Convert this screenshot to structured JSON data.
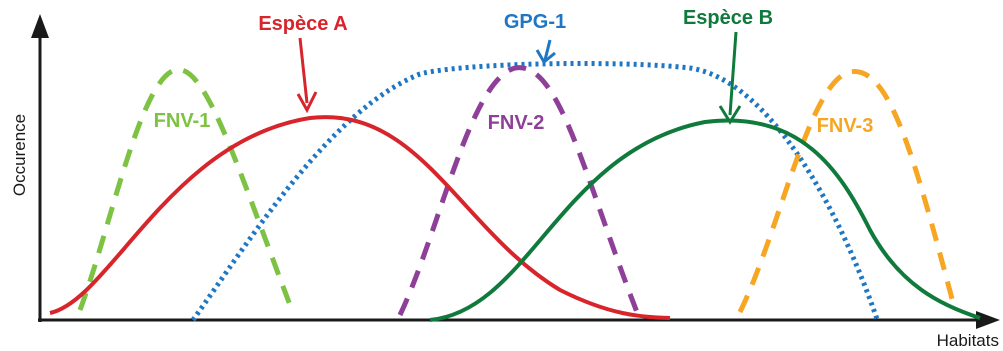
{
  "axes": {
    "y_label": "Occurence",
    "x_label": "Habitats"
  },
  "curves": {
    "espece_a": {
      "label": "Espèce A",
      "color": "#d7252b",
      "style": "solid"
    },
    "espece_b": {
      "label": "Espèce B",
      "color": "#0f7a3c",
      "style": "solid"
    },
    "gpg_1": {
      "label": "GPG-1",
      "color": "#1f77c4",
      "style": "dotted"
    },
    "fnv_1": {
      "label": "FNV-1",
      "color": "#7dc243",
      "style": "dashed"
    },
    "fnv_2": {
      "label": "FNV-2",
      "color": "#8e3f98",
      "style": "dashed"
    },
    "fnv_3": {
      "label": "FNV-3",
      "color": "#f6a623",
      "style": "dashed"
    }
  }
}
